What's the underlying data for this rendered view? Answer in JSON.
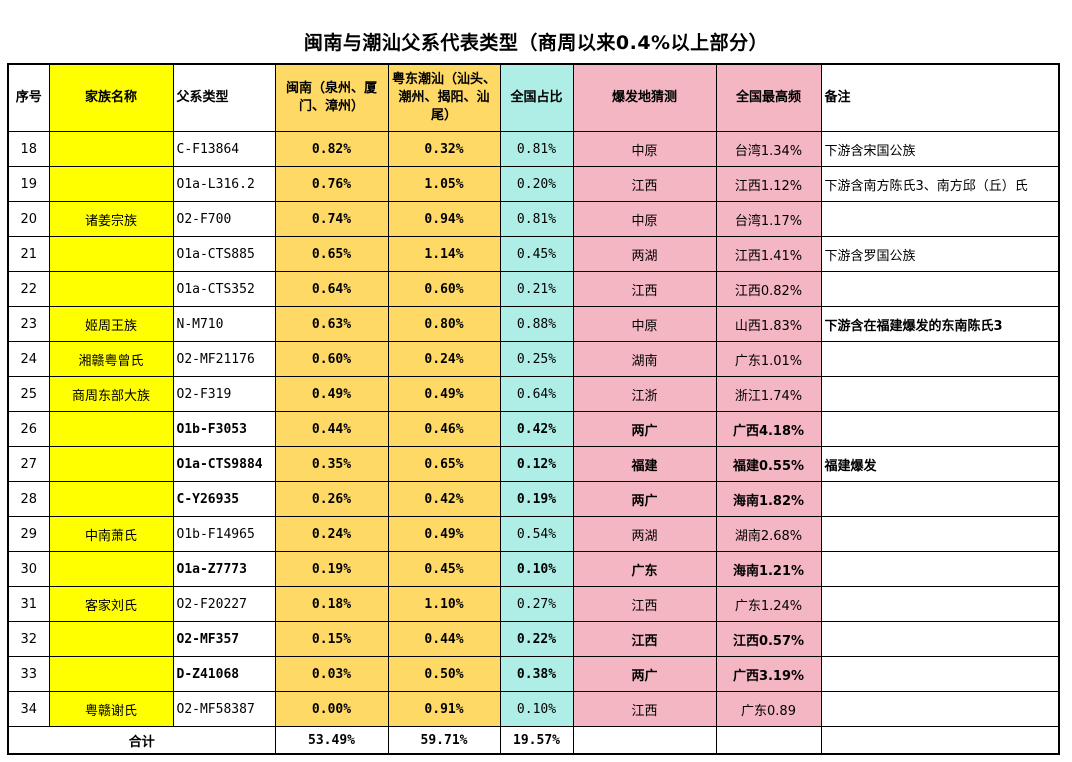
{
  "title": "闽南与潮汕父系代表类型（商周以来0.4%以上部分）",
  "headers": {
    "num": "序号",
    "family": "家族名称",
    "type": "父系类型",
    "minnan": "闽南（泉州、厦门、漳州）",
    "yuedong": "粤东潮汕（汕头、潮州、揭阳、汕尾）",
    "national": "全国占比",
    "origin": "爆发地猜测",
    "max": "全国最高频",
    "note": "备注"
  },
  "rows": [
    {
      "num": "18",
      "family": "",
      "type": "C-F13864",
      "minnan": "0.82%",
      "yuedong": "0.32%",
      "national": "0.81%",
      "origin": "中原",
      "max": "台湾1.34%",
      "note": "下游含宋国公族",
      "bold": false,
      "note_bold": false
    },
    {
      "num": "19",
      "family": "",
      "type": "O1a-L316.2",
      "minnan": "0.76%",
      "yuedong": "1.05%",
      "national": "0.20%",
      "origin": "江西",
      "max": "江西1.12%",
      "note": "下游含南方陈氏3、南方邱（丘）氏",
      "bold": false,
      "note_bold": false
    },
    {
      "num": "20",
      "family": "诸姜宗族",
      "type": "O2-F700",
      "minnan": "0.74%",
      "yuedong": "0.94%",
      "national": "0.81%",
      "origin": "中原",
      "max": "台湾1.17%",
      "note": "",
      "bold": false,
      "note_bold": false
    },
    {
      "num": "21",
      "family": "",
      "type": "O1a-CTS885",
      "minnan": "0.65%",
      "yuedong": "1.14%",
      "national": "0.45%",
      "origin": "两湖",
      "max": "江西1.41%",
      "note": "下游含罗国公族",
      "bold": false,
      "note_bold": false
    },
    {
      "num": "22",
      "family": "",
      "type": "O1a-CTS352",
      "minnan": "0.64%",
      "yuedong": "0.60%",
      "national": "0.21%",
      "origin": "江西",
      "max": "江西0.82%",
      "note": "",
      "bold": false,
      "note_bold": false
    },
    {
      "num": "23",
      "family": "姬周王族",
      "type": "N-M710",
      "minnan": "0.63%",
      "yuedong": "0.80%",
      "national": "0.88%",
      "origin": "中原",
      "max": "山西1.83%",
      "note": "下游含在福建爆发的东南陈氏3",
      "bold": false,
      "note_bold": true
    },
    {
      "num": "24",
      "family": "湘赣粤曾氏",
      "type": "O2-MF21176",
      "minnan": "0.60%",
      "yuedong": "0.24%",
      "national": "0.25%",
      "origin": "湖南",
      "max": "广东1.01%",
      "note": "",
      "bold": false,
      "note_bold": false
    },
    {
      "num": "25",
      "family": "商周东部大族",
      "type": "O2-F319",
      "minnan": "0.49%",
      "yuedong": "0.49%",
      "national": "0.64%",
      "origin": "江浙",
      "max": "浙江1.74%",
      "note": "",
      "bold": false,
      "note_bold": false
    },
    {
      "num": "26",
      "family": "",
      "type": "O1b-F3053",
      "minnan": "0.44%",
      "yuedong": "0.46%",
      "national": "0.42%",
      "origin": "两广",
      "max": "广西4.18%",
      "note": "",
      "bold": true,
      "note_bold": false
    },
    {
      "num": "27",
      "family": "",
      "type": "O1a-CTS9884",
      "minnan": "0.35%",
      "yuedong": "0.65%",
      "national": "0.12%",
      "origin": "福建",
      "max": "福建0.55%",
      "note": "福建爆发",
      "bold": true,
      "note_bold": true
    },
    {
      "num": "28",
      "family": "",
      "type": "C-Y26935",
      "minnan": "0.26%",
      "yuedong": "0.42%",
      "national": "0.19%",
      "origin": "两广",
      "max": "海南1.82%",
      "note": "",
      "bold": true,
      "note_bold": false
    },
    {
      "num": "29",
      "family": "中南萧氏",
      "type": "O1b-F14965",
      "minnan": "0.24%",
      "yuedong": "0.49%",
      "national": "0.54%",
      "origin": "两湖",
      "max": "湖南2.68%",
      "note": "",
      "bold": false,
      "note_bold": false
    },
    {
      "num": "30",
      "family": "",
      "type": "O1a-Z7773",
      "minnan": "0.19%",
      "yuedong": "0.45%",
      "national": "0.10%",
      "origin": "广东",
      "max": "海南1.21%",
      "note": "",
      "bold": true,
      "note_bold": false
    },
    {
      "num": "31",
      "family": "客家刘氏",
      "type": "O2-F20227",
      "minnan": "0.18%",
      "yuedong": "1.10%",
      "national": "0.27%",
      "origin": "江西",
      "max": "广东1.24%",
      "note": "",
      "bold": false,
      "note_bold": false
    },
    {
      "num": "32",
      "family": "",
      "type": "O2-MF357",
      "minnan": "0.15%",
      "yuedong": "0.44%",
      "national": "0.22%",
      "origin": "江西",
      "max": "江西0.57%",
      "note": "",
      "bold": true,
      "note_bold": false
    },
    {
      "num": "33",
      "family": "",
      "type": "D-Z41068",
      "minnan": "0.03%",
      "yuedong": "0.50%",
      "national": "0.38%",
      "origin": "两广",
      "max": "广西3.19%",
      "note": "",
      "bold": true,
      "note_bold": false
    },
    {
      "num": "34",
      "family": "粤赣谢氏",
      "type": "O2-MF58387",
      "minnan": "0.00%",
      "yuedong": "0.91%",
      "national": "0.10%",
      "origin": "江西",
      "max": "广东0.89",
      "note": "",
      "bold": false,
      "note_bold": false
    }
  ],
  "total": {
    "label": "合计",
    "minnan": "53.49%",
    "yuedong": "59.71%",
    "national": "19.57%"
  },
  "colors": {
    "family": "#ffff00",
    "regional": "#ffd966",
    "national": "#aeeee6",
    "origin": "#f4b6c2"
  }
}
